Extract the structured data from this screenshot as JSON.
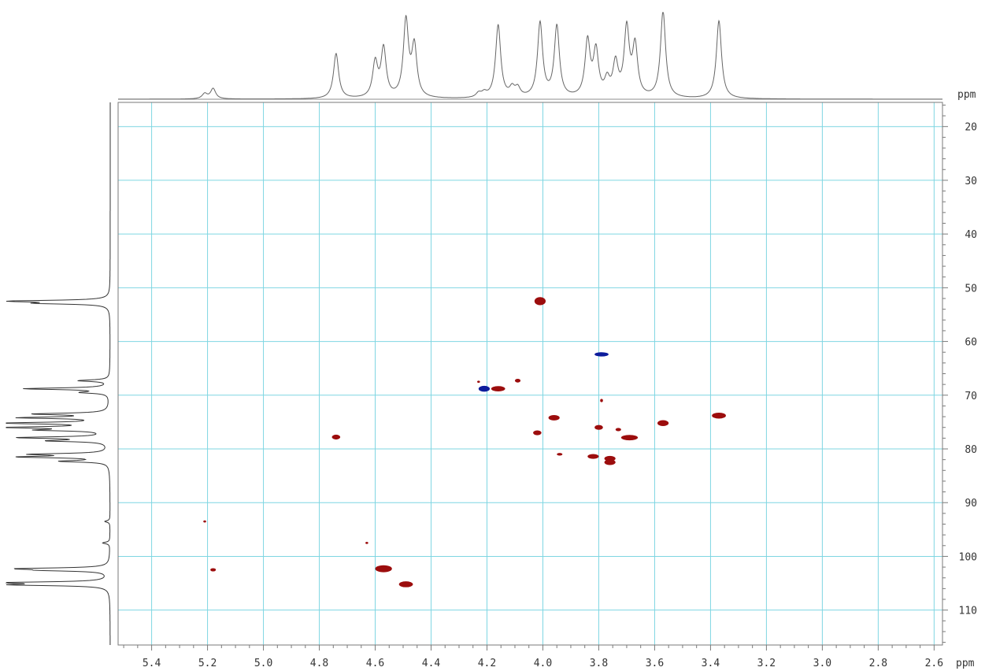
{
  "chart_data": {
    "type": "scatter",
    "title": "",
    "x_unit": "ppm",
    "y_unit": "ppm",
    "x_axis": {
      "min": 2.57,
      "max": 5.52,
      "reversed": true,
      "ticks": [
        5.4,
        5.2,
        5.0,
        4.8,
        4.6,
        4.4,
        4.2,
        4.0,
        3.8,
        3.6,
        3.4,
        3.2,
        3.0,
        2.8,
        2.6
      ]
    },
    "y_axis": {
      "min": 15.5,
      "max": 116.5,
      "reversed": true,
      "ticks": [
        20,
        30,
        40,
        50,
        60,
        70,
        80,
        90,
        100,
        110
      ]
    },
    "grid": true,
    "colors": {
      "positive": "#9c0d0d",
      "negative": "#0d1c9c",
      "grid": "#7fd6e2",
      "trace": "#666666"
    },
    "series": [
      {
        "sign": "positive",
        "points": [
          {
            "x": 4.01,
            "y": 52.5,
            "w": 0.04,
            "h": 1.5
          },
          {
            "x": 4.16,
            "y": 68.8,
            "w": 0.05,
            "h": 1.0
          },
          {
            "x": 4.09,
            "y": 67.3,
            "w": 0.02,
            "h": 0.7
          },
          {
            "x": 3.96,
            "y": 74.2,
            "w": 0.04,
            "h": 1.0
          },
          {
            "x": 3.8,
            "y": 76.0,
            "w": 0.03,
            "h": 0.9
          },
          {
            "x": 3.79,
            "y": 71.0,
            "w": 0.01,
            "h": 0.6
          },
          {
            "x": 3.73,
            "y": 76.4,
            "w": 0.02,
            "h": 0.6
          },
          {
            "x": 3.69,
            "y": 77.9,
            "w": 0.06,
            "h": 1.0
          },
          {
            "x": 3.57,
            "y": 75.2,
            "w": 0.04,
            "h": 1.1
          },
          {
            "x": 3.37,
            "y": 73.8,
            "w": 0.05,
            "h": 1.1
          },
          {
            "x": 4.02,
            "y": 77.0,
            "w": 0.03,
            "h": 0.9
          },
          {
            "x": 3.94,
            "y": 81.0,
            "w": 0.02,
            "h": 0.5
          },
          {
            "x": 3.82,
            "y": 81.4,
            "w": 0.04,
            "h": 0.9
          },
          {
            "x": 3.76,
            "y": 81.8,
            "w": 0.04,
            "h": 1.0
          },
          {
            "x": 3.76,
            "y": 82.5,
            "w": 0.04,
            "h": 1.0
          },
          {
            "x": 4.74,
            "y": 77.8,
            "w": 0.03,
            "h": 0.9
          },
          {
            "x": 5.21,
            "y": 93.5,
            "w": 0.01,
            "h": 0.4
          },
          {
            "x": 5.18,
            "y": 102.5,
            "w": 0.02,
            "h": 0.6
          },
          {
            "x": 4.63,
            "y": 97.5,
            "w": 0.01,
            "h": 0.4
          },
          {
            "x": 4.57,
            "y": 102.3,
            "w": 0.06,
            "h": 1.3
          },
          {
            "x": 4.49,
            "y": 105.2,
            "w": 0.05,
            "h": 1.1
          },
          {
            "x": 4.23,
            "y": 67.5,
            "w": 0.01,
            "h": 0.4
          }
        ]
      },
      {
        "sign": "negative",
        "points": [
          {
            "x": 4.21,
            "y": 68.8,
            "w": 0.04,
            "h": 1.1
          },
          {
            "x": 3.79,
            "y": 62.4,
            "w": 0.05,
            "h": 0.8
          }
        ]
      }
    ],
    "f2_projection": [
      {
        "x": 5.21,
        "h": 0.06
      },
      {
        "x": 5.18,
        "h": 0.12
      },
      {
        "x": 4.74,
        "h": 0.52
      },
      {
        "x": 4.6,
        "h": 0.4
      },
      {
        "x": 4.57,
        "h": 0.56
      },
      {
        "x": 4.49,
        "h": 0.88
      },
      {
        "x": 4.46,
        "h": 0.58
      },
      {
        "x": 4.23,
        "h": 0.05
      },
      {
        "x": 4.21,
        "h": 0.05
      },
      {
        "x": 4.16,
        "h": 0.84
      },
      {
        "x": 4.11,
        "h": 0.1
      },
      {
        "x": 4.09,
        "h": 0.1
      },
      {
        "x": 4.01,
        "h": 0.86
      },
      {
        "x": 3.95,
        "h": 0.82
      },
      {
        "x": 3.84,
        "h": 0.64
      },
      {
        "x": 3.81,
        "h": 0.52
      },
      {
        "x": 3.77,
        "h": 0.18
      },
      {
        "x": 3.74,
        "h": 0.38
      },
      {
        "x": 3.7,
        "h": 0.78
      },
      {
        "x": 3.67,
        "h": 0.58
      },
      {
        "x": 3.57,
        "h": 1.0
      },
      {
        "x": 3.37,
        "h": 0.9
      }
    ],
    "f1_projection": [
      {
        "y": 52.5,
        "h": 0.95
      },
      {
        "y": 52.9,
        "h": 0.6
      },
      {
        "y": 67.3,
        "h": 0.3
      },
      {
        "y": 68.8,
        "h": 0.82
      },
      {
        "y": 69.5,
        "h": 0.25
      },
      {
        "y": 73.5,
        "h": 0.7
      },
      {
        "y": 74.2,
        "h": 0.82
      },
      {
        "y": 75.2,
        "h": 1.0
      },
      {
        "y": 76.0,
        "h": 0.9
      },
      {
        "y": 76.5,
        "h": 0.6
      },
      {
        "y": 77.9,
        "h": 0.85
      },
      {
        "y": 78.5,
        "h": 0.55
      },
      {
        "y": 81.0,
        "h": 0.7
      },
      {
        "y": 81.5,
        "h": 0.82
      },
      {
        "y": 82.3,
        "h": 0.45
      },
      {
        "y": 93.5,
        "h": 0.05
      },
      {
        "y": 97.5,
        "h": 0.07
      },
      {
        "y": 102.3,
        "h": 0.8
      },
      {
        "y": 102.6,
        "h": 0.5
      },
      {
        "y": 104.9,
        "h": 0.95
      },
      {
        "y": 105.3,
        "h": 0.85
      }
    ]
  }
}
